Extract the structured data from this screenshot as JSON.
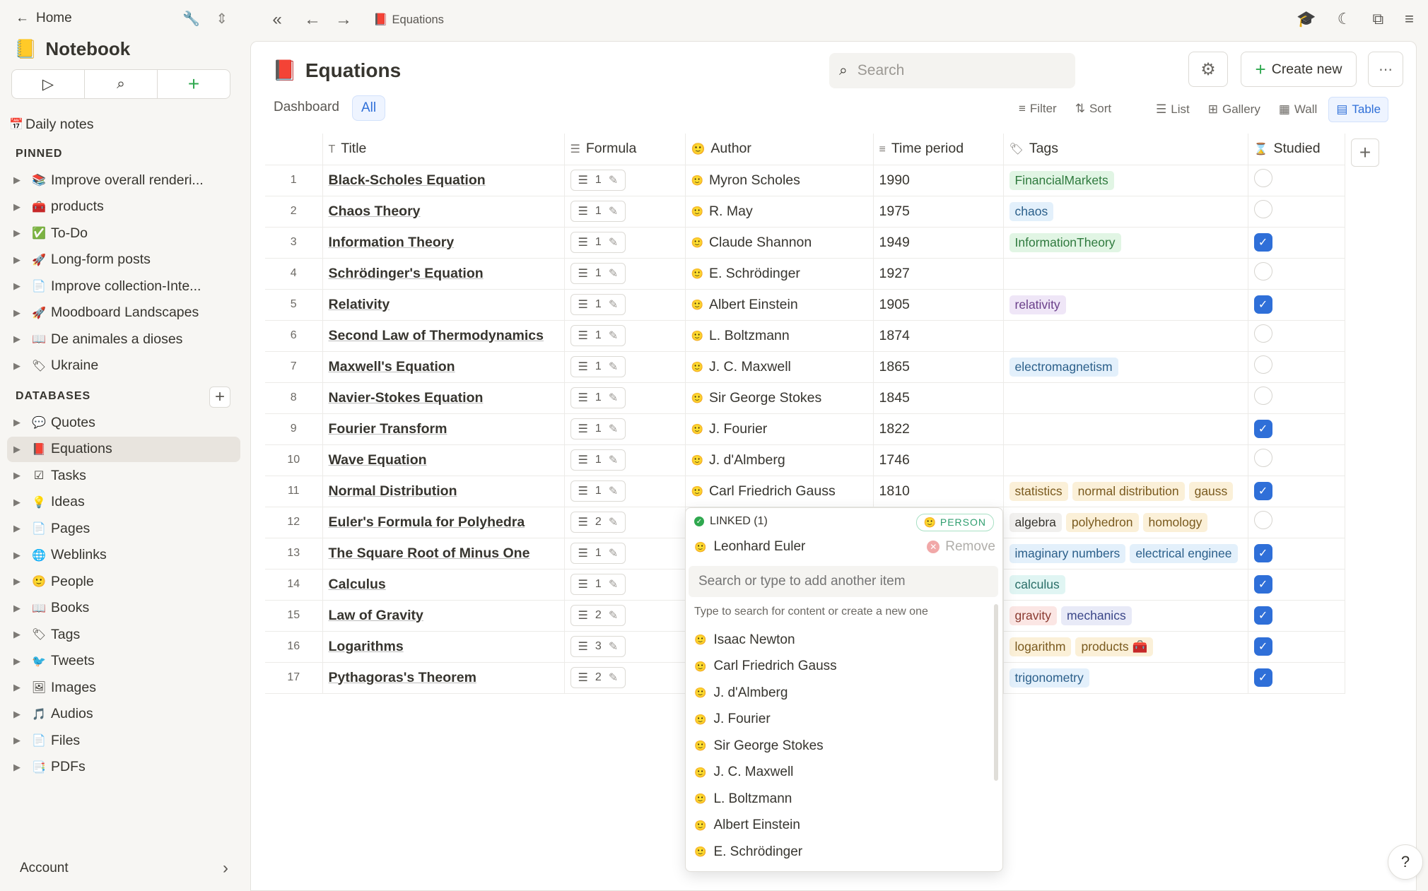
{
  "sidebar": {
    "home_label": "Home",
    "notebook": {
      "icon": "📒",
      "title": "Notebook"
    },
    "daily_notes": "Daily notes",
    "pinned_heading": "PINNED",
    "pinned": [
      {
        "icon": "📚",
        "label": "Improve overall renderi..."
      },
      {
        "icon": "🧰",
        "label": "products"
      },
      {
        "icon": "✅",
        "label": "To-Do"
      },
      {
        "icon": "🚀",
        "label": "Long-form posts"
      },
      {
        "icon": "📄",
        "label": "Improve collection-Inte..."
      },
      {
        "icon": "🚀",
        "label": "Moodboard Landscapes"
      },
      {
        "icon": "📖",
        "label": "De animales a dioses"
      },
      {
        "icon": "🏷",
        "label": "Ukraine"
      }
    ],
    "databases_heading": "DATABASES",
    "databases": [
      {
        "icon": "💬",
        "label": "Quotes"
      },
      {
        "icon": "📕",
        "label": "Equations"
      },
      {
        "icon": "☑",
        "label": "Tasks"
      },
      {
        "icon": "💡",
        "label": "Ideas"
      },
      {
        "icon": "📄",
        "label": "Pages"
      },
      {
        "icon": "🌐",
        "label": "Weblinks"
      },
      {
        "icon": "🙂",
        "label": "People"
      },
      {
        "icon": "📖",
        "label": "Books"
      },
      {
        "icon": "🏷",
        "label": "Tags"
      },
      {
        "icon": "🐦",
        "label": "Tweets"
      },
      {
        "icon": "🖼",
        "label": "Images"
      },
      {
        "icon": "🎵",
        "label": "Audios"
      },
      {
        "icon": "📄",
        "label": "Files"
      },
      {
        "icon": "📑",
        "label": "PDFs"
      }
    ],
    "account_label": "Account"
  },
  "topbar": {
    "breadcrumb_icon": "📕",
    "breadcrumb": "Equations"
  },
  "page": {
    "icon": "📕",
    "title": "Equations",
    "search_placeholder": "Search",
    "create_new": "Create new",
    "tabs": [
      "Dashboard",
      "All"
    ],
    "filter": "Filter",
    "sort": "Sort",
    "views": [
      "List",
      "Gallery",
      "Wall",
      "Table"
    ]
  },
  "table": {
    "headers": {
      "title": "Title",
      "formula": "Formula",
      "author": "Author",
      "time": "Time period",
      "tags": "Tags",
      "studied": "Studied"
    },
    "rows": [
      {
        "n": "1",
        "title": "Black-Scholes Equation",
        "formula": "1",
        "author": "Myron Scholes",
        "year": "1990",
        "tags": [
          {
            "t": "FinancialMarkets",
            "bg": "#e1f5e4",
            "fg": "#2f7a3e"
          }
        ],
        "studied": false
      },
      {
        "n": "2",
        "title": "Chaos Theory",
        "formula": "1",
        "author": "R. May",
        "year": "1975",
        "tags": [
          {
            "t": "chaos",
            "bg": "#e3f0fb",
            "fg": "#2b5f8a"
          }
        ],
        "studied": false
      },
      {
        "n": "3",
        "title": "Information Theory",
        "formula": "1",
        "author": "Claude Shannon",
        "year": "1949",
        "tags": [
          {
            "t": "InformationTheory",
            "bg": "#e1f5e4",
            "fg": "#2f7a3e"
          }
        ],
        "studied": true
      },
      {
        "n": "4",
        "title": "Schrödinger's Equation",
        "formula": "1",
        "author": "E. Schrödinger",
        "year": "1927",
        "tags": [],
        "studied": false
      },
      {
        "n": "5",
        "title": "Relativity",
        "formula": "1",
        "author": "Albert Einstein",
        "year": "1905",
        "tags": [
          {
            "t": "relativity",
            "bg": "#efe6f7",
            "fg": "#6a3f8a"
          }
        ],
        "studied": true
      },
      {
        "n": "6",
        "title": "Second Law of Thermodynamics",
        "formula": "1",
        "author": "L. Boltzmann",
        "year": "1874",
        "tags": [],
        "studied": false
      },
      {
        "n": "7",
        "title": "Maxwell's Equation",
        "formula": "1",
        "author": "J. C. Maxwell",
        "year": "1865",
        "tags": [
          {
            "t": "electromagnetism",
            "bg": "#e3f0fb",
            "fg": "#2b5f8a"
          }
        ],
        "studied": false
      },
      {
        "n": "8",
        "title": "Navier-Stokes Equation",
        "formula": "1",
        "author": "Sir George Stokes",
        "year": "1845",
        "tags": [],
        "studied": false
      },
      {
        "n": "9",
        "title": "Fourier Transform",
        "formula": "1",
        "author": "J. Fourier",
        "year": "1822",
        "tags": [],
        "studied": true
      },
      {
        "n": "10",
        "title": "Wave Equation",
        "formula": "1",
        "author": "J. d'Almberg",
        "year": "1746",
        "tags": [],
        "studied": false
      },
      {
        "n": "11",
        "title": "Normal Distribution",
        "formula": "1",
        "author": "Carl Friedrich Gauss",
        "year": "1810",
        "tags": [
          {
            "t": "statistics",
            "bg": "#fbf0d8",
            "fg": "#7a5a1e"
          },
          {
            "t": "normal distribution",
            "bg": "#fbf0d8",
            "fg": "#7a5a1e"
          },
          {
            "t": "gauss",
            "bg": "#fbf0d8",
            "fg": "#7a5a1e"
          }
        ],
        "studied": true
      },
      {
        "n": "12",
        "title": "Euler's Formula for Polyhedra",
        "formula": "2",
        "author": "",
        "year": "",
        "tags": [
          {
            "t": "algebra",
            "bg": "#f1f0ee",
            "fg": "#37352f"
          },
          {
            "t": "polyhedron",
            "bg": "#fbf0d8",
            "fg": "#7a5a1e"
          },
          {
            "t": "homology",
            "bg": "#fbf0d8",
            "fg": "#7a5a1e"
          }
        ],
        "studied": false
      },
      {
        "n": "13",
        "title": "The Square Root of Minus One",
        "formula": "1",
        "author": "",
        "year": "",
        "tags": [
          {
            "t": "imaginary numbers",
            "bg": "#e3f0fb",
            "fg": "#2b5f8a"
          },
          {
            "t": "electrical enginee",
            "bg": "#e3f0fb",
            "fg": "#2b5f8a"
          }
        ],
        "studied": true
      },
      {
        "n": "14",
        "title": "Calculus",
        "formula": "1",
        "author": "",
        "year": "",
        "tags": [
          {
            "t": "calculus",
            "bg": "#e0f5f3",
            "fg": "#2a6e68"
          }
        ],
        "studied": true
      },
      {
        "n": "15",
        "title": "Law of Gravity",
        "formula": "2",
        "author": "",
        "year": "",
        "tags": [
          {
            "t": "gravity",
            "bg": "#fbe6e4",
            "fg": "#8a3a30"
          },
          {
            "t": "mechanics",
            "bg": "#e8eaf7",
            "fg": "#3a4688"
          }
        ],
        "studied": true
      },
      {
        "n": "16",
        "title": "Logarithms",
        "formula": "3",
        "author": "",
        "year": "",
        "tags": [
          {
            "t": "logarithm",
            "bg": "#fbf0d8",
            "fg": "#7a5a1e"
          },
          {
            "t": "products 🧰",
            "bg": "#fbf0d8",
            "fg": "#7a5a1e"
          }
        ],
        "studied": true
      },
      {
        "n": "17",
        "title": "Pythagoras's Theorem",
        "formula": "2",
        "author": "",
        "year": "",
        "tags": [
          {
            "t": "trigonometry",
            "bg": "#e3f0fb",
            "fg": "#2b5f8a"
          }
        ],
        "studied": true
      }
    ]
  },
  "popup": {
    "linked_label": "LINKED (1)",
    "badge": "PERSON",
    "linked_item": "Leonhard Euler",
    "remove": "Remove",
    "input_placeholder": "Search or type to add another item",
    "hint": "Type to search for content or create a new one",
    "options": [
      "Isaac Newton",
      "Carl Friedrich Gauss",
      "J. d'Almberg",
      "J. Fourier",
      "Sir George Stokes",
      "J. C. Maxwell",
      "L. Boltzmann",
      "Albert Einstein",
      "E. Schrödinger"
    ]
  },
  "help": "?"
}
